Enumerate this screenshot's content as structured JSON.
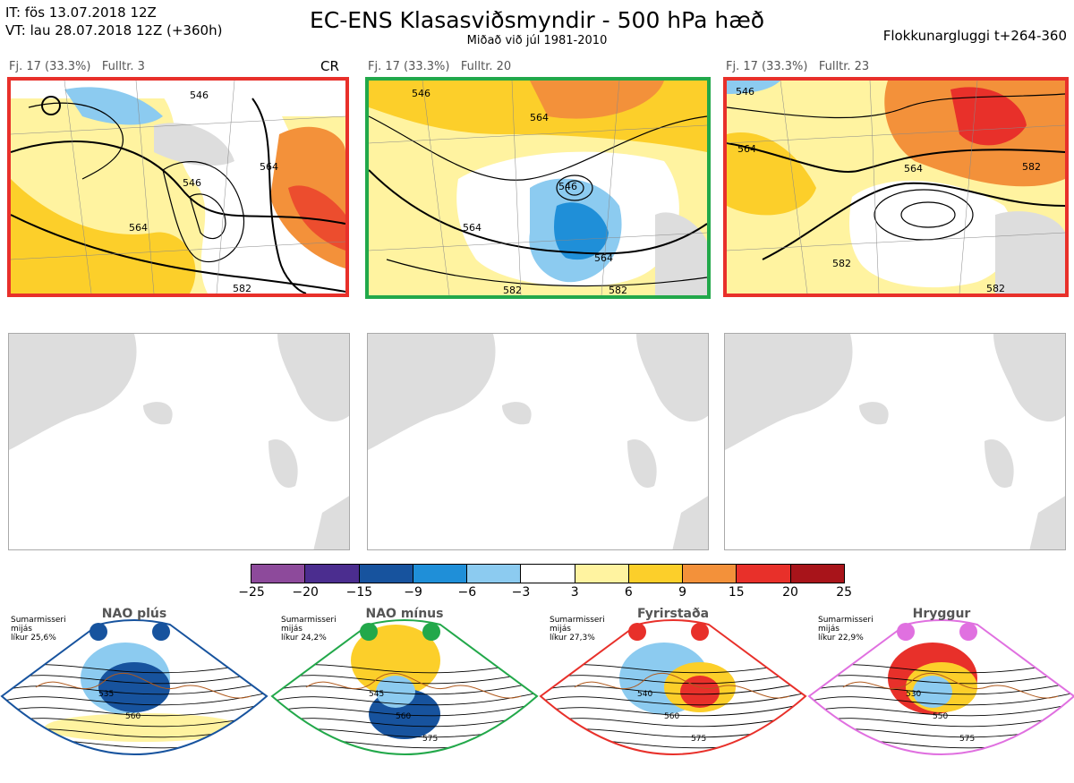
{
  "header": {
    "it_line": "IT: fös 13.07.2018 12Z",
    "vt_line": "VT: lau 28.07.2018 12Z  (+360h)",
    "title": "EC-ENS Klasasviðsmyndir - 500 hPa hæð",
    "subtitle": "Miðað við júl 1981-2010",
    "right": "Flokkunargluggi t+264-360"
  },
  "panels": [
    {
      "label": "Fj. 17 (33.3%)   Fulltr. 3",
      "tag": "CR",
      "border": "#e8302a",
      "contours": [
        "546",
        "564",
        "564",
        "546",
        "582"
      ]
    },
    {
      "label": "Fj. 17 (33.3%)   Fulltr. 20",
      "tag": "",
      "border": "#22a84a",
      "contours": [
        "546",
        "564",
        "546",
        "564",
        "564",
        "582",
        "582"
      ]
    },
    {
      "label": "Fj. 17 (33.3%)   Fulltr. 23",
      "tag": "",
      "border": "#e8302a",
      "contours": [
        "546",
        "564",
        "564",
        "582",
        "582",
        "582"
      ]
    }
  ],
  "colorbar": {
    "colors": [
      "#8d4a9b",
      "#4b2d8f",
      "#17539e",
      "#1f8fd8",
      "#8ccbf0",
      "#ffffff",
      "#fff3a0",
      "#fccf2a",
      "#f3913a",
      "#e8302a",
      "#a8141a"
    ],
    "ticks": [
      "−25",
      "−20",
      "−15",
      "−9",
      "−6",
      "−3",
      "3",
      "6",
      "9",
      "15",
      "20",
      "25"
    ]
  },
  "regimes": [
    {
      "name": "NAO plús",
      "line1": "Sumarmisseri",
      "line2": "mijás",
      "line3": "líkur 25,6%",
      "color": "#17539e",
      "contours": [
        "535",
        "560"
      ]
    },
    {
      "name": "NAO mínus",
      "line1": "Sumarmisseri",
      "line2": "mijás",
      "line3": "líkur 24,2%",
      "color": "#22a84a",
      "contours": [
        "545",
        "560",
        "575"
      ]
    },
    {
      "name": "Fyrirstaða",
      "line1": "Sumarmisseri",
      "line2": "mijás",
      "line3": "líkur 27,3%",
      "color": "#e8302a",
      "contours": [
        "540",
        "560",
        "575"
      ]
    },
    {
      "name": "Hryggur",
      "line1": "Sumarmisseri",
      "line2": "mijás",
      "line3": "líkur 22,9%",
      "color": "#e070e0",
      "contours": [
        "530",
        "550",
        "575"
      ]
    }
  ]
}
